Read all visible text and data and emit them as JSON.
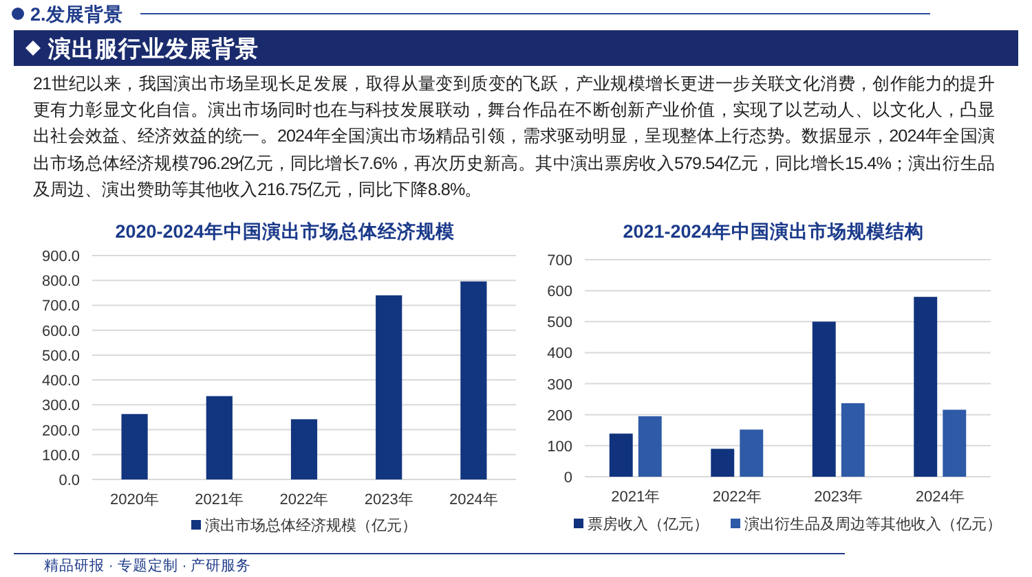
{
  "chart_data": [
    {
      "type": "other",
      "title": "演出服行业发展背景",
      "annotations": [
        "2.发展背景",
        "21世纪以来，我国演出市场呈现长足发展，取得从量变到质变的飞跃，产业规模增长更进一步关联文化消费，创作能力的提升更有力彰显文化自信。演出市场同时也在与科技发展联动，舞台作品在不断创新产业价值，实现了以艺动人、以文化人，凸显出社会效益、经济效益的统一。2024年全国演出市场精品引领，需求驱动明显，呈现整体上行态势。数据显示，2024年全国演出市场总体经济规模796.29亿元，同比增长7.6%，再次历史新高。其中演出票房收入579.54亿元，同比增长15.4%；演出衍生品及周边、演出赞助等其他收入216.75亿元，同比下降8.8%。",
        "精品研报 · 专题定制 · 产研服务"
      ]
    },
    {
      "type": "bar",
      "title": "2020-2024年中国演出市场总体经济规模",
      "categories": [
        "2020年",
        "2021年",
        "2022年",
        "2023年",
        "2024年"
      ],
      "series": [
        {
          "name": "演出市场总体经济规模（亿元）",
          "color": "#12357f",
          "values": [
            263,
            335,
            242,
            740,
            796
          ]
        }
      ],
      "ylim": [
        0,
        900
      ],
      "yticks": [
        {
          "value": 0,
          "label": "0.0"
        },
        {
          "value": 100,
          "label": "100.0"
        },
        {
          "value": 200,
          "label": "200.0"
        },
        {
          "value": 300,
          "label": "300.0"
        },
        {
          "value": 400,
          "label": "400.0"
        },
        {
          "value": 500,
          "label": "500.0"
        },
        {
          "value": 600,
          "label": "600.0"
        },
        {
          "value": 700,
          "label": "700.0"
        },
        {
          "value": 800,
          "label": "800.0"
        },
        {
          "value": 900,
          "label": "900.0"
        }
      ],
      "grid": "y",
      "legend": "bottom"
    },
    {
      "type": "bar",
      "title": "2021-2024年中国演出市场规模结构",
      "categories": [
        "2021年",
        "2022年",
        "2023年",
        "2024年"
      ],
      "series": [
        {
          "name": "票房收入（亿元）",
          "color": "#11337d",
          "values": [
            139,
            90,
            500,
            580
          ]
        },
        {
          "name": "演出衍生品及周边等其他收入（亿元）",
          "color": "#2e5aa7",
          "values": [
            195,
            152,
            237,
            216
          ]
        }
      ],
      "ylim": [
        0,
        700
      ],
      "yticks": [
        0,
        100,
        200,
        300,
        400,
        500,
        600,
        700
      ],
      "grid": "y",
      "legend": "bottom"
    }
  ]
}
